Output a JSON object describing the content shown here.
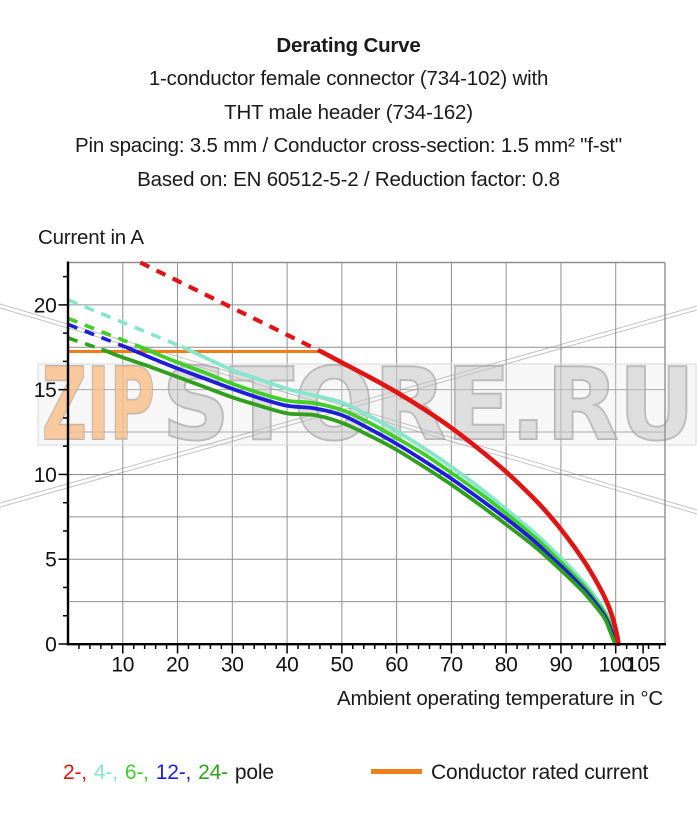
{
  "header": {
    "lines": [
      "Derating Curve",
      "1-conductor female connector (734-102) with",
      "THT male header (734-162)",
      "Pin spacing: 3.5 mm / Conductor cross-section: 1.5 mm² \"f-st\"",
      "Based on: EN 60512-5-2 / Reduction factor: 0.8"
    ]
  },
  "watermark": {
    "part1": "ZIP",
    "part2": "STORE.RU",
    "part1_color": "#f6bd85",
    "part2_color": "#c6c6c6",
    "outline_color": "#9c9c9c"
  },
  "legend": {
    "pole_items": [
      {
        "label": "2-,",
        "color": "#e11414"
      },
      {
        "label": "4-,",
        "color": "#85e6cb"
      },
      {
        "label": "6-,",
        "color": "#41cf27"
      },
      {
        "label": "12-,",
        "color": "#1e1ed9"
      },
      {
        "label": "24-",
        "color": "#2f9f1d"
      }
    ],
    "pole_suffix": "pole",
    "rated": {
      "label": "Conductor rated current",
      "color": "#f07d1a"
    }
  },
  "chart_data": {
    "type": "line",
    "title": "Derating Curve",
    "ylabel": "Current in A",
    "xlabel": "Ambient operating temperature in °C",
    "xlim": [
      0,
      109
    ],
    "ylim": [
      0,
      22.5
    ],
    "x_major_ticks": [
      10,
      20,
      30,
      40,
      50,
      60,
      70,
      80,
      90,
      100,
      105
    ],
    "x_minor_tick_step": 2,
    "x_grid_step": 10,
    "y_major_ticks": [
      0,
      5,
      10,
      15,
      20
    ],
    "y_minor_tick_step": 1.6667,
    "y_grid_step": 2.5,
    "grid_color": "#8f8f8f",
    "axis_color": "#000000",
    "rated_current": {
      "label": "Conductor rated current",
      "value": 17.25,
      "x_start": 0,
      "x_end": 46.2,
      "color": "#f07d1a"
    },
    "series": [
      {
        "name": "2-pole",
        "color": "#e11414",
        "dashed": [
          [
            13.2,
            22.5
          ],
          [
            46.2,
            17.25
          ]
        ],
        "solid": [
          [
            46.2,
            17.25
          ],
          [
            50,
            16.6
          ],
          [
            55,
            15.75
          ],
          [
            60,
            14.85
          ],
          [
            65,
            13.85
          ],
          [
            70,
            12.75
          ],
          [
            75,
            11.5
          ],
          [
            80,
            10.15
          ],
          [
            85,
            8.6
          ],
          [
            88,
            7.55
          ],
          [
            91,
            6.35
          ],
          [
            94,
            5.0
          ],
          [
            96,
            3.95
          ],
          [
            98,
            2.75
          ],
          [
            99.3,
            1.7
          ],
          [
            100.2,
            0.6
          ],
          [
            100.5,
            0
          ]
        ]
      },
      {
        "name": "4-pole",
        "color": "#85e6cb",
        "dashed": [
          [
            0,
            20.3
          ],
          [
            21,
            17.5
          ]
        ],
        "solid": [
          [
            21,
            17.5
          ],
          [
            25,
            16.9
          ],
          [
            30,
            16.15
          ],
          [
            35,
            15.6
          ],
          [
            40,
            15.05
          ],
          [
            45,
            14.65
          ],
          [
            50,
            14.25
          ],
          [
            55,
            13.45
          ],
          [
            60,
            12.55
          ],
          [
            65,
            11.55
          ],
          [
            70,
            10.45
          ],
          [
            75,
            9.25
          ],
          [
            80,
            7.95
          ],
          [
            85,
            6.6
          ],
          [
            88,
            5.7
          ],
          [
            91,
            4.75
          ],
          [
            94,
            3.7
          ],
          [
            96,
            2.9
          ],
          [
            98,
            1.95
          ],
          [
            99.4,
            1.0
          ],
          [
            100.3,
            0
          ]
        ]
      },
      {
        "name": "6-pole",
        "color": "#41cf27",
        "dashed": [
          [
            0,
            19.2
          ],
          [
            13,
            17.55
          ]
        ],
        "solid": [
          [
            13,
            17.55
          ],
          [
            17,
            17.0
          ],
          [
            20,
            16.6
          ],
          [
            25,
            16.0
          ],
          [
            30,
            15.35
          ],
          [
            35,
            14.8
          ],
          [
            40,
            14.35
          ],
          [
            45,
            14.2
          ],
          [
            50,
            13.8
          ],
          [
            55,
            13.05
          ],
          [
            60,
            12.15
          ],
          [
            65,
            11.2
          ],
          [
            70,
            10.1
          ],
          [
            75,
            8.95
          ],
          [
            80,
            7.7
          ],
          [
            85,
            6.35
          ],
          [
            88,
            5.45
          ],
          [
            91,
            4.5
          ],
          [
            94,
            3.5
          ],
          [
            96,
            2.7
          ],
          [
            98,
            1.8
          ],
          [
            99.3,
            0.9
          ],
          [
            100.1,
            0
          ]
        ]
      },
      {
        "name": "12-pole",
        "color": "#1e1ed9",
        "dashed": [
          [
            0,
            18.85
          ],
          [
            11,
            17.45
          ]
        ],
        "solid": [
          [
            11,
            17.45
          ],
          [
            15,
            16.9
          ],
          [
            20,
            16.25
          ],
          [
            25,
            15.65
          ],
          [
            30,
            15.05
          ],
          [
            35,
            14.5
          ],
          [
            40,
            14.05
          ],
          [
            45,
            13.9
          ],
          [
            50,
            13.5
          ],
          [
            55,
            12.7
          ],
          [
            60,
            11.8
          ],
          [
            65,
            10.8
          ],
          [
            70,
            9.75
          ],
          [
            75,
            8.6
          ],
          [
            80,
            7.4
          ],
          [
            85,
            6.1
          ],
          [
            88,
            5.2
          ],
          [
            91,
            4.3
          ],
          [
            94,
            3.3
          ],
          [
            96,
            2.55
          ],
          [
            98,
            1.65
          ],
          [
            99.2,
            0.8
          ],
          [
            100,
            0
          ]
        ]
      },
      {
        "name": "24-pole",
        "color": "#2f9f1d",
        "dashed": [
          [
            0,
            18.05
          ],
          [
            6.4,
            17.35
          ]
        ],
        "solid": [
          [
            6.4,
            17.35
          ],
          [
            10,
            16.9
          ],
          [
            15,
            16.35
          ],
          [
            20,
            15.75
          ],
          [
            25,
            15.15
          ],
          [
            30,
            14.55
          ],
          [
            35,
            14.05
          ],
          [
            40,
            13.6
          ],
          [
            45,
            13.5
          ],
          [
            50,
            13.05
          ],
          [
            55,
            12.3
          ],
          [
            60,
            11.45
          ],
          [
            65,
            10.45
          ],
          [
            70,
            9.4
          ],
          [
            75,
            8.25
          ],
          [
            80,
            7.05
          ],
          [
            85,
            5.8
          ],
          [
            88,
            4.95
          ],
          [
            91,
            4.05
          ],
          [
            94,
            3.1
          ],
          [
            96,
            2.35
          ],
          [
            98,
            1.5
          ],
          [
            99.1,
            0.65
          ],
          [
            99.9,
            0
          ]
        ]
      }
    ]
  }
}
